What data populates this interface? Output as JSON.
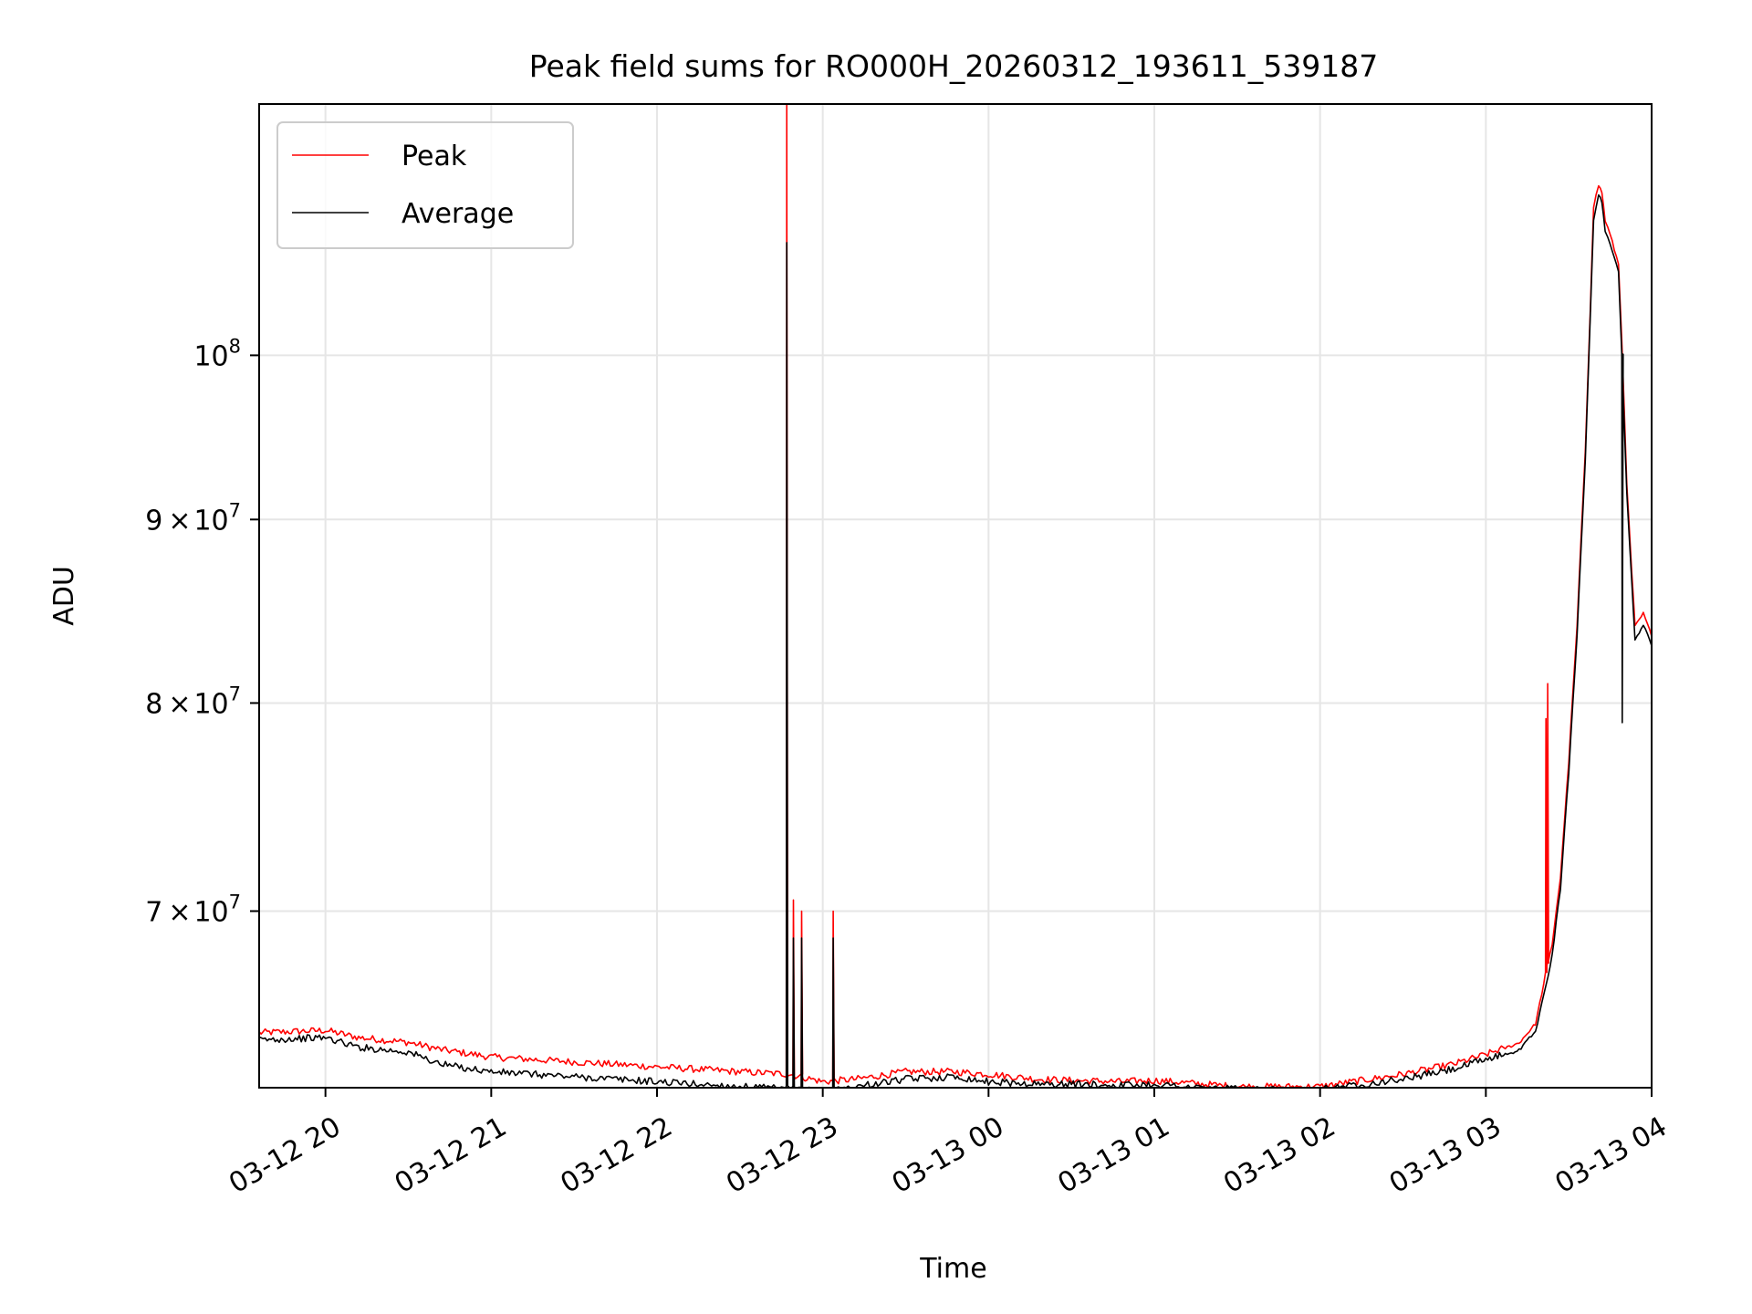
{
  "chart_data": {
    "type": "line",
    "title": "Peak field sums for RO000H_20260312_193611_539187",
    "xlabel": "Time",
    "ylabel": "ADU",
    "yscale": "log",
    "ylim": [
      62500000,
      117500000
    ],
    "xlim_hours": [
      19.6,
      28.0
    ],
    "grid": true,
    "legend_position": "top-left",
    "x_ticks": [
      {
        "hour": 20,
        "label": "03-12 20"
      },
      {
        "hour": 21,
        "label": "03-12 21"
      },
      {
        "hour": 22,
        "label": "03-12 22"
      },
      {
        "hour": 23,
        "label": "03-12 23"
      },
      {
        "hour": 24,
        "label": "03-13 00"
      },
      {
        "hour": 25,
        "label": "03-13 01"
      },
      {
        "hour": 26,
        "label": "03-13 02"
      },
      {
        "hour": 27,
        "label": "03-13 03"
      },
      {
        "hour": 28,
        "label": "03-13 04"
      }
    ],
    "y_ticks": [
      {
        "value": 70000000,
        "mantissa": "7",
        "base": "10",
        "exp": "7"
      },
      {
        "value": 80000000,
        "mantissa": "8",
        "base": "10",
        "exp": "7"
      },
      {
        "value": 90000000,
        "mantissa": "9",
        "base": "10",
        "exp": "7"
      },
      {
        "value": 100000000,
        "mantissa": "",
        "base": "10",
        "exp": "8"
      }
    ],
    "series": [
      {
        "name": "Peak",
        "color": "#ff0000",
        "x_hours": [
          19.6,
          20.0,
          20.2,
          20.5,
          20.7,
          21.0,
          21.5,
          22.0,
          22.5,
          22.8,
          23.0,
          23.2,
          23.5,
          23.8,
          24.0,
          24.3,
          24.5,
          24.8,
          25.0,
          25.3,
          25.5,
          25.8,
          26.0,
          26.2,
          26.5,
          26.8,
          27.0,
          27.2,
          27.3,
          27.35,
          27.4,
          27.45,
          27.5,
          27.55,
          27.6,
          27.63,
          27.65,
          27.68,
          27.7,
          27.72,
          27.75,
          27.8,
          27.82,
          27.85,
          27.88,
          27.9,
          27.95,
          28.0
        ],
        "values": [
          64700000,
          64800000,
          64500000,
          64300000,
          64000000,
          63700000,
          63500000,
          63300000,
          63100000,
          63000000,
          62700000,
          62800000,
          63100000,
          63100000,
          63000000,
          62800000,
          62750000,
          62700000,
          62750000,
          62600000,
          62500000,
          62500000,
          62500000,
          62700000,
          63000000,
          63400000,
          63800000,
          64300000,
          65100000,
          66800000,
          68500000,
          71500000,
          77000000,
          84000000,
          94000000,
          103000000,
          110000000,
          111500000,
          111000000,
          109000000,
          108000000,
          106000000,
          101000000,
          92000000,
          87000000,
          84000000,
          84700000,
          83500000
        ],
        "spikes": [
          {
            "hour": 22.78,
            "value": 117500000
          },
          {
            "hour": 22.82,
            "value": 70500000
          },
          {
            "hour": 22.87,
            "value": 70000000
          },
          {
            "hour": 23.06,
            "value": 70000000
          },
          {
            "hour": 27.36,
            "value": 79200000
          },
          {
            "hour": 27.37,
            "value": 81000000
          }
        ]
      },
      {
        "name": "Average",
        "color": "#000000",
        "x_hours": [
          19.6,
          20.0,
          20.2,
          20.5,
          20.7,
          21.0,
          21.5,
          22.0,
          22.5,
          22.8,
          23.0,
          23.2,
          23.5,
          23.8,
          24.0,
          24.3,
          24.5,
          24.8,
          25.0,
          25.3,
          25.5,
          25.8,
          26.0,
          26.2,
          26.5,
          26.8,
          27.0,
          27.2,
          27.3,
          27.35,
          27.4,
          27.45,
          27.5,
          27.55,
          27.6,
          27.63,
          27.65,
          27.68,
          27.7,
          27.72,
          27.75,
          27.8,
          27.82,
          27.85,
          27.88,
          27.9,
          27.95,
          28.0
        ],
        "values": [
          64400000,
          64500000,
          64100000,
          63900000,
          63400000,
          63100000,
          62900000,
          62700000,
          62500000,
          62400000,
          62300000,
          62500000,
          62800000,
          62900000,
          62700000,
          62600000,
          62600000,
          62550000,
          62600000,
          62450000,
          62400000,
          62350000,
          62400000,
          62550000,
          62800000,
          63200000,
          63600000,
          64000000,
          64800000,
          66300000,
          68000000,
          71000000,
          76500000,
          83500000,
          93500000,
          102500000,
          109000000,
          110800000,
          110300000,
          108200000,
          107300000,
          105500000,
          100000000,
          91500000,
          86500000,
          83300000,
          84100000,
          83000000
        ],
        "spikes": [
          {
            "hour": 22.78,
            "value": 107500000
          },
          {
            "hour": 22.82,
            "value": 68800000
          },
          {
            "hour": 22.87,
            "value": 68800000
          },
          {
            "hour": 23.06,
            "value": 68800000
          },
          {
            "hour": 27.82,
            "value": 79000000
          }
        ]
      }
    ]
  }
}
